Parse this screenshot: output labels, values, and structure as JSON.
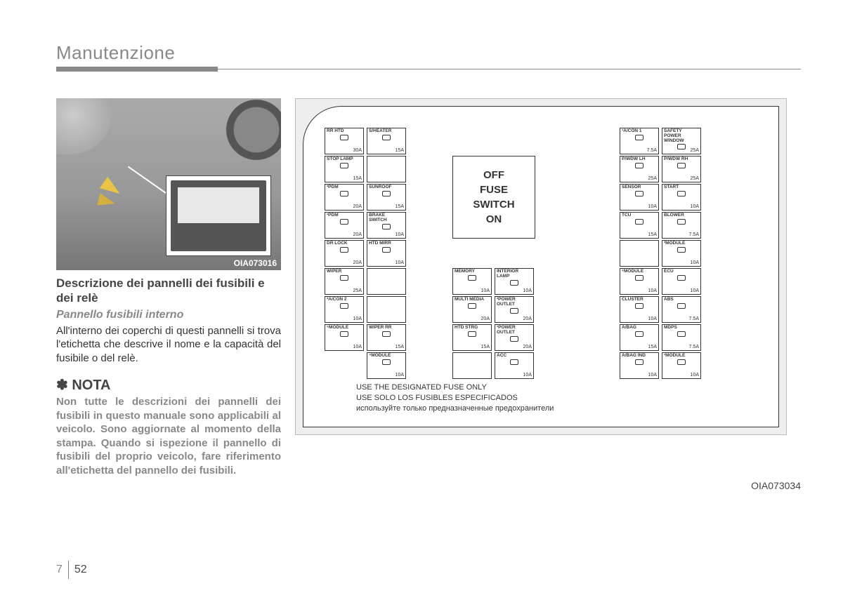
{
  "header": {
    "title": "Manutenzione"
  },
  "photo": {
    "id": "OIA073016"
  },
  "section": {
    "heading1": "Descrizione dei pannelli dei fusibili e dei relè",
    "heading2": "Pannello fusibili interno",
    "body": "All'interno dei coperchi di questi pannelli si trova l'etichetta che descrive il nome e la capacità del fusibile o del relè."
  },
  "nota": {
    "heading": "✽ NOTA",
    "body": "Non tutte le descrizioni dei pannelli dei fusibili in questo manuale sono applicabili al veicolo. Sono aggiornate al momento della stampa. Quando si ispezione il pannello di fusibili del proprio veicolo, fare riferimento all'etichetta del pannello dei fusibili."
  },
  "diagram": {
    "id": "OIA073034",
    "switchbox": {
      "l1": "OFF",
      "l2": "FUSE",
      "l3": "SWITCH",
      "l4": "ON"
    },
    "notes": {
      "en": "USE THE DESIGNATED FUSE ONLY",
      "es": "USE SOLO LOS FUSIBLES ESPECIFICADOS",
      "ru": "используйте только предназначенные предохранители"
    },
    "col_a": [
      {
        "label": "RR HTD",
        "amp": "30A"
      },
      {
        "label": "STOP LAMP",
        "amp": "15A"
      },
      {
        "label": "²PDM",
        "amp": "20A"
      },
      {
        "label": "¹PDM",
        "amp": "20A"
      },
      {
        "label": "DR LOCK",
        "amp": "20A"
      },
      {
        "label": "WIPER",
        "amp": "25A"
      },
      {
        "label": "²A/CON 2",
        "amp": "10A"
      },
      {
        "label": "⁵MODULE",
        "amp": "10A"
      }
    ],
    "col_b": [
      {
        "label": "S/HEATER",
        "amp": "15A"
      },
      {
        "label": "",
        "amp": ""
      },
      {
        "label": "SUNROOF",
        "amp": "15A"
      },
      {
        "label": "BRAKE SWITCH",
        "amp": "10A"
      },
      {
        "label": "HTD MIRR",
        "amp": "10A"
      },
      {
        "label": "",
        "amp": ""
      },
      {
        "label": "",
        "amp": ""
      },
      {
        "label": "WIPER RR",
        "amp": "15A"
      },
      {
        "label": "⁴MODULE",
        "amp": "10A"
      }
    ],
    "col_c": [
      {
        "label": "MEMORY",
        "amp": "10A"
      },
      {
        "label": "MULTI MEDIA",
        "amp": "20A"
      },
      {
        "label": "HTD STRG",
        "amp": "15A"
      },
      {
        "label": "",
        "amp": ""
      }
    ],
    "col_d": [
      {
        "label": "INTERIOR LAMP",
        "amp": "10A"
      },
      {
        "label": "²POWER OUTLET",
        "amp": "20A"
      },
      {
        "label": "¹POWER OUTLET",
        "amp": "20A"
      },
      {
        "label": "ACC",
        "amp": "10A"
      }
    ],
    "col_e": [
      {
        "label": "¹A/CON 1",
        "amp": "7.5A"
      },
      {
        "label": "P/WDW LH",
        "amp": "25A"
      },
      {
        "label": "SENSOR",
        "amp": "10A"
      },
      {
        "label": "TCU",
        "amp": "15A"
      },
      {
        "label": "",
        "amp": ""
      },
      {
        "label": "⁶MODULE",
        "amp": "10A"
      },
      {
        "label": "CLUSTER",
        "amp": "10A"
      },
      {
        "label": "A/BAG",
        "amp": "15A"
      },
      {
        "label": "A/BAG IND",
        "amp": "10A"
      }
    ],
    "col_f": [
      {
        "label": "SAFETY POWER WINDOW",
        "amp": "25A"
      },
      {
        "label": "P/WDW RH",
        "amp": "25A"
      },
      {
        "label": "START",
        "amp": "10A"
      },
      {
        "label": "BLOWER",
        "amp": "7.5A"
      },
      {
        "label": "³MODULE",
        "amp": "10A"
      },
      {
        "label": "ECU",
        "amp": "10A"
      },
      {
        "label": "ABS",
        "amp": "7.5A"
      },
      {
        "label": "MDPS",
        "amp": "7.5A"
      },
      {
        "label": "¹MODULE",
        "amp": "10A"
      }
    ]
  },
  "page": {
    "chapter": "7",
    "number": "52"
  }
}
